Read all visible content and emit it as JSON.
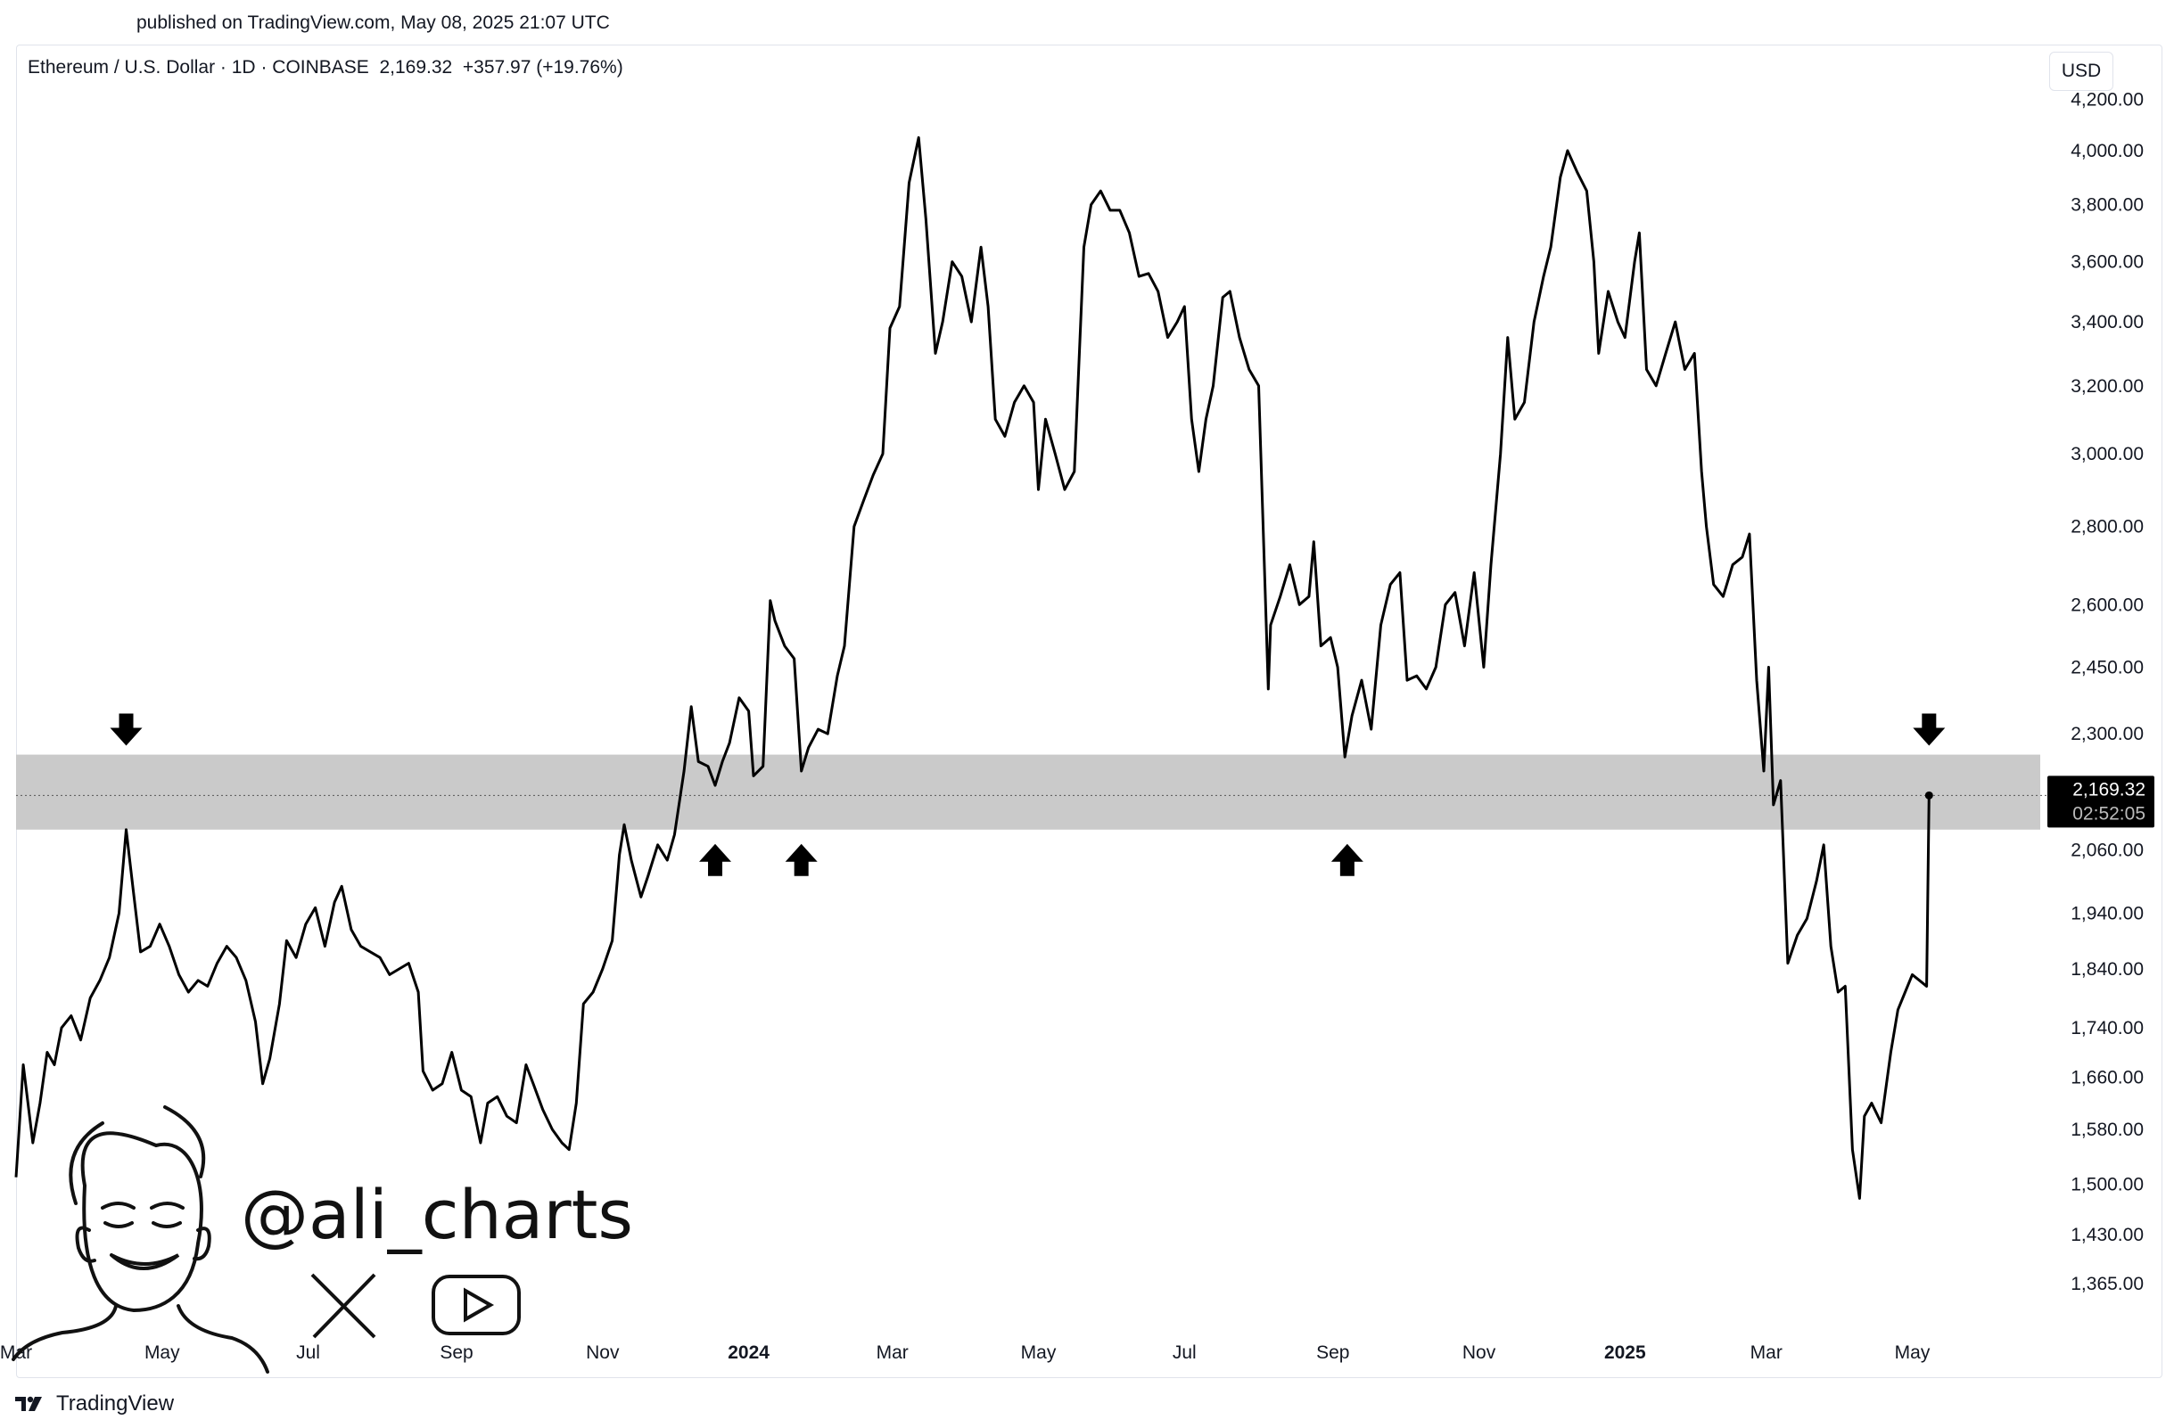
{
  "header": {
    "published": "published on TradingView.com, May 08, 2025 21:07 UTC",
    "symbol": "Ethereum / U.S. Dollar",
    "interval": "1D",
    "exchange": "COINBASE",
    "last": "2,169.32",
    "change": "+357.97 (+19.76%)",
    "currency": "USD"
  },
  "watermark": {
    "handle": "@ali_charts",
    "icons": [
      "x-logo-icon",
      "youtube-icon"
    ]
  },
  "footer": {
    "brand": "TradingView",
    "logo_icon": "tradingview-logo-icon"
  },
  "colors": {
    "line": "#000000",
    "zone": "#c7c7c7",
    "axis_text": "#131722",
    "price_label_bg": "#000000"
  },
  "chart_data": {
    "type": "line",
    "title": "",
    "xlabel": "",
    "ylabel": "",
    "y_scale": "log",
    "ylim": [
      1300,
      4200
    ],
    "xlim": [
      "2023-03-01",
      "2025-05-31"
    ],
    "grid": false,
    "x_ticks": [
      {
        "label": "Mar",
        "date": "2023-03-01",
        "bold": false
      },
      {
        "label": "May",
        "date": "2023-05-01",
        "bold": false
      },
      {
        "label": "Jul",
        "date": "2023-07-01",
        "bold": false
      },
      {
        "label": "Sep",
        "date": "2023-09-01",
        "bold": false
      },
      {
        "label": "Nov",
        "date": "2023-11-01",
        "bold": false
      },
      {
        "label": "2024",
        "date": "2024-01-01",
        "bold": true
      },
      {
        "label": "Mar",
        "date": "2024-03-01",
        "bold": false
      },
      {
        "label": "May",
        "date": "2024-05-01",
        "bold": false
      },
      {
        "label": "Jul",
        "date": "2024-07-01",
        "bold": false
      },
      {
        "label": "Sep",
        "date": "2024-09-01",
        "bold": false
      },
      {
        "label": "Nov",
        "date": "2024-11-01",
        "bold": false
      },
      {
        "label": "2025",
        "date": "2025-01-01",
        "bold": true
      },
      {
        "label": "Mar",
        "date": "2025-03-01",
        "bold": false
      },
      {
        "label": "May",
        "date": "2025-05-01",
        "bold": false
      }
    ],
    "y_ticks": [
      "1,365.00",
      "1,430.00",
      "1,500.00",
      "1,580.00",
      "1,660.00",
      "1,740.00",
      "1,840.00",
      "1,940.00",
      "2,060.00",
      "2,300.00",
      "2,450.00",
      "2,600.00",
      "2,800.00",
      "3,000.00",
      "3,200.00",
      "3,400.00",
      "3,600.00",
      "3,800.00",
      "4,000.00",
      "4,200.00"
    ],
    "y_tick_values": [
      1365,
      1430,
      1500,
      1580,
      1660,
      1740,
      1840,
      1940,
      2060,
      2300,
      2450,
      2600,
      2800,
      3000,
      3200,
      3400,
      3600,
      3800,
      4000,
      4200
    ],
    "zone": {
      "low": 2100,
      "high": 2255
    },
    "current_price": {
      "value": 2169.32,
      "label": "2,169.32",
      "countdown": "02:52:05"
    },
    "markers": [
      {
        "date": "2023-04-16",
        "direction": "down"
      },
      {
        "date": "2023-12-18",
        "direction": "up"
      },
      {
        "date": "2024-01-23",
        "direction": "up"
      },
      {
        "date": "2024-09-07",
        "direction": "up"
      },
      {
        "date": "2025-05-08",
        "direction": "down"
      }
    ],
    "series": [
      {
        "values": [
          [
            "2023-03-01",
            1510
          ],
          [
            "2023-03-04",
            1680
          ],
          [
            "2023-03-08",
            1560
          ],
          [
            "2023-03-11",
            1620
          ],
          [
            "2023-03-14",
            1700
          ],
          [
            "2023-03-17",
            1680
          ],
          [
            "2023-03-20",
            1740
          ],
          [
            "2023-03-24",
            1760
          ],
          [
            "2023-03-28",
            1720
          ],
          [
            "2023-04-01",
            1790
          ],
          [
            "2023-04-05",
            1820
          ],
          [
            "2023-04-09",
            1860
          ],
          [
            "2023-04-13",
            1940
          ],
          [
            "2023-04-16",
            2100
          ],
          [
            "2023-04-19",
            1980
          ],
          [
            "2023-04-22",
            1870
          ],
          [
            "2023-04-26",
            1880
          ],
          [
            "2023-04-30",
            1920
          ],
          [
            "2023-05-04",
            1880
          ],
          [
            "2023-05-08",
            1830
          ],
          [
            "2023-05-12",
            1800
          ],
          [
            "2023-05-16",
            1820
          ],
          [
            "2023-05-20",
            1810
          ],
          [
            "2023-05-24",
            1850
          ],
          [
            "2023-05-28",
            1880
          ],
          [
            "2023-06-01",
            1860
          ],
          [
            "2023-06-05",
            1820
          ],
          [
            "2023-06-09",
            1750
          ],
          [
            "2023-06-12",
            1650
          ],
          [
            "2023-06-15",
            1690
          ],
          [
            "2023-06-19",
            1780
          ],
          [
            "2023-06-22",
            1890
          ],
          [
            "2023-06-26",
            1860
          ],
          [
            "2023-06-30",
            1920
          ],
          [
            "2023-07-04",
            1950
          ],
          [
            "2023-07-08",
            1880
          ],
          [
            "2023-07-12",
            1960
          ],
          [
            "2023-07-15",
            1990
          ],
          [
            "2023-07-19",
            1910
          ],
          [
            "2023-07-23",
            1880
          ],
          [
            "2023-07-27",
            1870
          ],
          [
            "2023-07-31",
            1860
          ],
          [
            "2023-08-04",
            1830
          ],
          [
            "2023-08-08",
            1840
          ],
          [
            "2023-08-12",
            1850
          ],
          [
            "2023-08-16",
            1800
          ],
          [
            "2023-08-18",
            1670
          ],
          [
            "2023-08-22",
            1640
          ],
          [
            "2023-08-26",
            1650
          ],
          [
            "2023-08-30",
            1700
          ],
          [
            "2023-09-03",
            1640
          ],
          [
            "2023-09-07",
            1630
          ],
          [
            "2023-09-11",
            1560
          ],
          [
            "2023-09-14",
            1620
          ],
          [
            "2023-09-18",
            1630
          ],
          [
            "2023-09-22",
            1600
          ],
          [
            "2023-09-26",
            1590
          ],
          [
            "2023-09-30",
            1680
          ],
          [
            "2023-10-03",
            1650
          ],
          [
            "2023-10-07",
            1610
          ],
          [
            "2023-10-11",
            1580
          ],
          [
            "2023-10-15",
            1560
          ],
          [
            "2023-10-18",
            1550
          ],
          [
            "2023-10-21",
            1620
          ],
          [
            "2023-10-24",
            1780
          ],
          [
            "2023-10-28",
            1800
          ],
          [
            "2023-11-01",
            1840
          ],
          [
            "2023-11-05",
            1890
          ],
          [
            "2023-11-08",
            2050
          ],
          [
            "2023-11-10",
            2110
          ],
          [
            "2023-11-13",
            2040
          ],
          [
            "2023-11-17",
            1970
          ],
          [
            "2023-11-20",
            2010
          ],
          [
            "2023-11-24",
            2070
          ],
          [
            "2023-11-28",
            2040
          ],
          [
            "2023-12-01",
            2090
          ],
          [
            "2023-12-05",
            2220
          ],
          [
            "2023-12-08",
            2360
          ],
          [
            "2023-12-11",
            2240
          ],
          [
            "2023-12-15",
            2230
          ],
          [
            "2023-12-18",
            2190
          ],
          [
            "2023-12-21",
            2240
          ],
          [
            "2023-12-24",
            2280
          ],
          [
            "2023-12-28",
            2380
          ],
          [
            "2024-01-01",
            2350
          ],
          [
            "2024-01-03",
            2210
          ],
          [
            "2024-01-07",
            2230
          ],
          [
            "2024-01-10",
            2610
          ],
          [
            "2024-01-12",
            2560
          ],
          [
            "2024-01-16",
            2500
          ],
          [
            "2024-01-20",
            2470
          ],
          [
            "2024-01-23",
            2220
          ],
          [
            "2024-01-26",
            2270
          ],
          [
            "2024-01-30",
            2310
          ],
          [
            "2024-02-03",
            2300
          ],
          [
            "2024-02-07",
            2430
          ],
          [
            "2024-02-10",
            2500
          ],
          [
            "2024-02-14",
            2800
          ],
          [
            "2024-02-18",
            2870
          ],
          [
            "2024-02-22",
            2940
          ],
          [
            "2024-02-26",
            3000
          ],
          [
            "2024-02-29",
            3380
          ],
          [
            "2024-03-04",
            3450
          ],
          [
            "2024-03-08",
            3880
          ],
          [
            "2024-03-12",
            4050
          ],
          [
            "2024-03-15",
            3750
          ],
          [
            "2024-03-19",
            3300
          ],
          [
            "2024-03-22",
            3400
          ],
          [
            "2024-03-26",
            3600
          ],
          [
            "2024-03-30",
            3550
          ],
          [
            "2024-04-03",
            3400
          ],
          [
            "2024-04-07",
            3650
          ],
          [
            "2024-04-10",
            3450
          ],
          [
            "2024-04-13",
            3100
          ],
          [
            "2024-04-17",
            3050
          ],
          [
            "2024-04-21",
            3150
          ],
          [
            "2024-04-25",
            3200
          ],
          [
            "2024-04-29",
            3150
          ],
          [
            "2024-05-01",
            2900
          ],
          [
            "2024-05-04",
            3100
          ],
          [
            "2024-05-08",
            3000
          ],
          [
            "2024-05-12",
            2900
          ],
          [
            "2024-05-16",
            2950
          ],
          [
            "2024-05-20",
            3650
          ],
          [
            "2024-05-23",
            3800
          ],
          [
            "2024-05-27",
            3850
          ],
          [
            "2024-05-31",
            3780
          ],
          [
            "2024-06-04",
            3780
          ],
          [
            "2024-06-08",
            3700
          ],
          [
            "2024-06-12",
            3550
          ],
          [
            "2024-06-16",
            3560
          ],
          [
            "2024-06-20",
            3500
          ],
          [
            "2024-06-24",
            3350
          ],
          [
            "2024-06-28",
            3400
          ],
          [
            "2024-07-01",
            3450
          ],
          [
            "2024-07-04",
            3100
          ],
          [
            "2024-07-07",
            2950
          ],
          [
            "2024-07-10",
            3100
          ],
          [
            "2024-07-13",
            3200
          ],
          [
            "2024-07-17",
            3480
          ],
          [
            "2024-07-20",
            3500
          ],
          [
            "2024-07-24",
            3350
          ],
          [
            "2024-07-28",
            3250
          ],
          [
            "2024-08-01",
            3200
          ],
          [
            "2024-08-05",
            2400
          ],
          [
            "2024-08-06",
            2550
          ],
          [
            "2024-08-10",
            2620
          ],
          [
            "2024-08-14",
            2700
          ],
          [
            "2024-08-18",
            2600
          ],
          [
            "2024-08-22",
            2620
          ],
          [
            "2024-08-24",
            2760
          ],
          [
            "2024-08-27",
            2500
          ],
          [
            "2024-08-31",
            2520
          ],
          [
            "2024-09-03",
            2450
          ],
          [
            "2024-09-06",
            2250
          ],
          [
            "2024-09-09",
            2340
          ],
          [
            "2024-09-13",
            2420
          ],
          [
            "2024-09-17",
            2310
          ],
          [
            "2024-09-21",
            2550
          ],
          [
            "2024-09-25",
            2650
          ],
          [
            "2024-09-29",
            2680
          ],
          [
            "2024-10-02",
            2420
          ],
          [
            "2024-10-06",
            2430
          ],
          [
            "2024-10-10",
            2400
          ],
          [
            "2024-10-14",
            2450
          ],
          [
            "2024-10-18",
            2600
          ],
          [
            "2024-10-22",
            2630
          ],
          [
            "2024-10-26",
            2500
          ],
          [
            "2024-10-30",
            2680
          ],
          [
            "2024-11-03",
            2450
          ],
          [
            "2024-11-06",
            2700
          ],
          [
            "2024-11-10",
            3000
          ],
          [
            "2024-11-13",
            3350
          ],
          [
            "2024-11-16",
            3100
          ],
          [
            "2024-11-20",
            3150
          ],
          [
            "2024-11-24",
            3400
          ],
          [
            "2024-11-28",
            3550
          ],
          [
            "2024-12-01",
            3650
          ],
          [
            "2024-12-05",
            3900
          ],
          [
            "2024-12-08",
            4000
          ],
          [
            "2024-12-12",
            3920
          ],
          [
            "2024-12-16",
            3850
          ],
          [
            "2024-12-19",
            3600
          ],
          [
            "2024-12-21",
            3300
          ],
          [
            "2024-12-25",
            3500
          ],
          [
            "2024-12-29",
            3400
          ],
          [
            "2025-01-01",
            3350
          ],
          [
            "2025-01-05",
            3600
          ],
          [
            "2025-01-07",
            3700
          ],
          [
            "2025-01-10",
            3250
          ],
          [
            "2025-01-14",
            3200
          ],
          [
            "2025-01-18",
            3300
          ],
          [
            "2025-01-22",
            3400
          ],
          [
            "2025-01-26",
            3250
          ],
          [
            "2025-01-30",
            3300
          ],
          [
            "2025-02-02",
            2950
          ],
          [
            "2025-02-04",
            2800
          ],
          [
            "2025-02-07",
            2650
          ],
          [
            "2025-02-11",
            2620
          ],
          [
            "2025-02-15",
            2700
          ],
          [
            "2025-02-19",
            2720
          ],
          [
            "2025-02-22",
            2780
          ],
          [
            "2025-02-25",
            2420
          ],
          [
            "2025-02-28",
            2220
          ],
          [
            "2025-03-02",
            2450
          ],
          [
            "2025-03-04",
            2150
          ],
          [
            "2025-03-07",
            2200
          ],
          [
            "2025-03-10",
            1850
          ],
          [
            "2025-03-14",
            1900
          ],
          [
            "2025-03-18",
            1930
          ],
          [
            "2025-03-22",
            2000
          ],
          [
            "2025-03-25",
            2070
          ],
          [
            "2025-03-28",
            1880
          ],
          [
            "2025-03-31",
            1800
          ],
          [
            "2025-04-03",
            1810
          ],
          [
            "2025-04-06",
            1550
          ],
          [
            "2025-04-09",
            1480
          ],
          [
            "2025-04-11",
            1600
          ],
          [
            "2025-04-14",
            1620
          ],
          [
            "2025-04-18",
            1590
          ],
          [
            "2025-04-22",
            1700
          ],
          [
            "2025-04-25",
            1770
          ],
          [
            "2025-04-28",
            1800
          ],
          [
            "2025-05-01",
            1830
          ],
          [
            "2025-05-04",
            1820
          ],
          [
            "2025-05-07",
            1810
          ],
          [
            "2025-05-08",
            2169.32
          ]
        ]
      }
    ]
  }
}
